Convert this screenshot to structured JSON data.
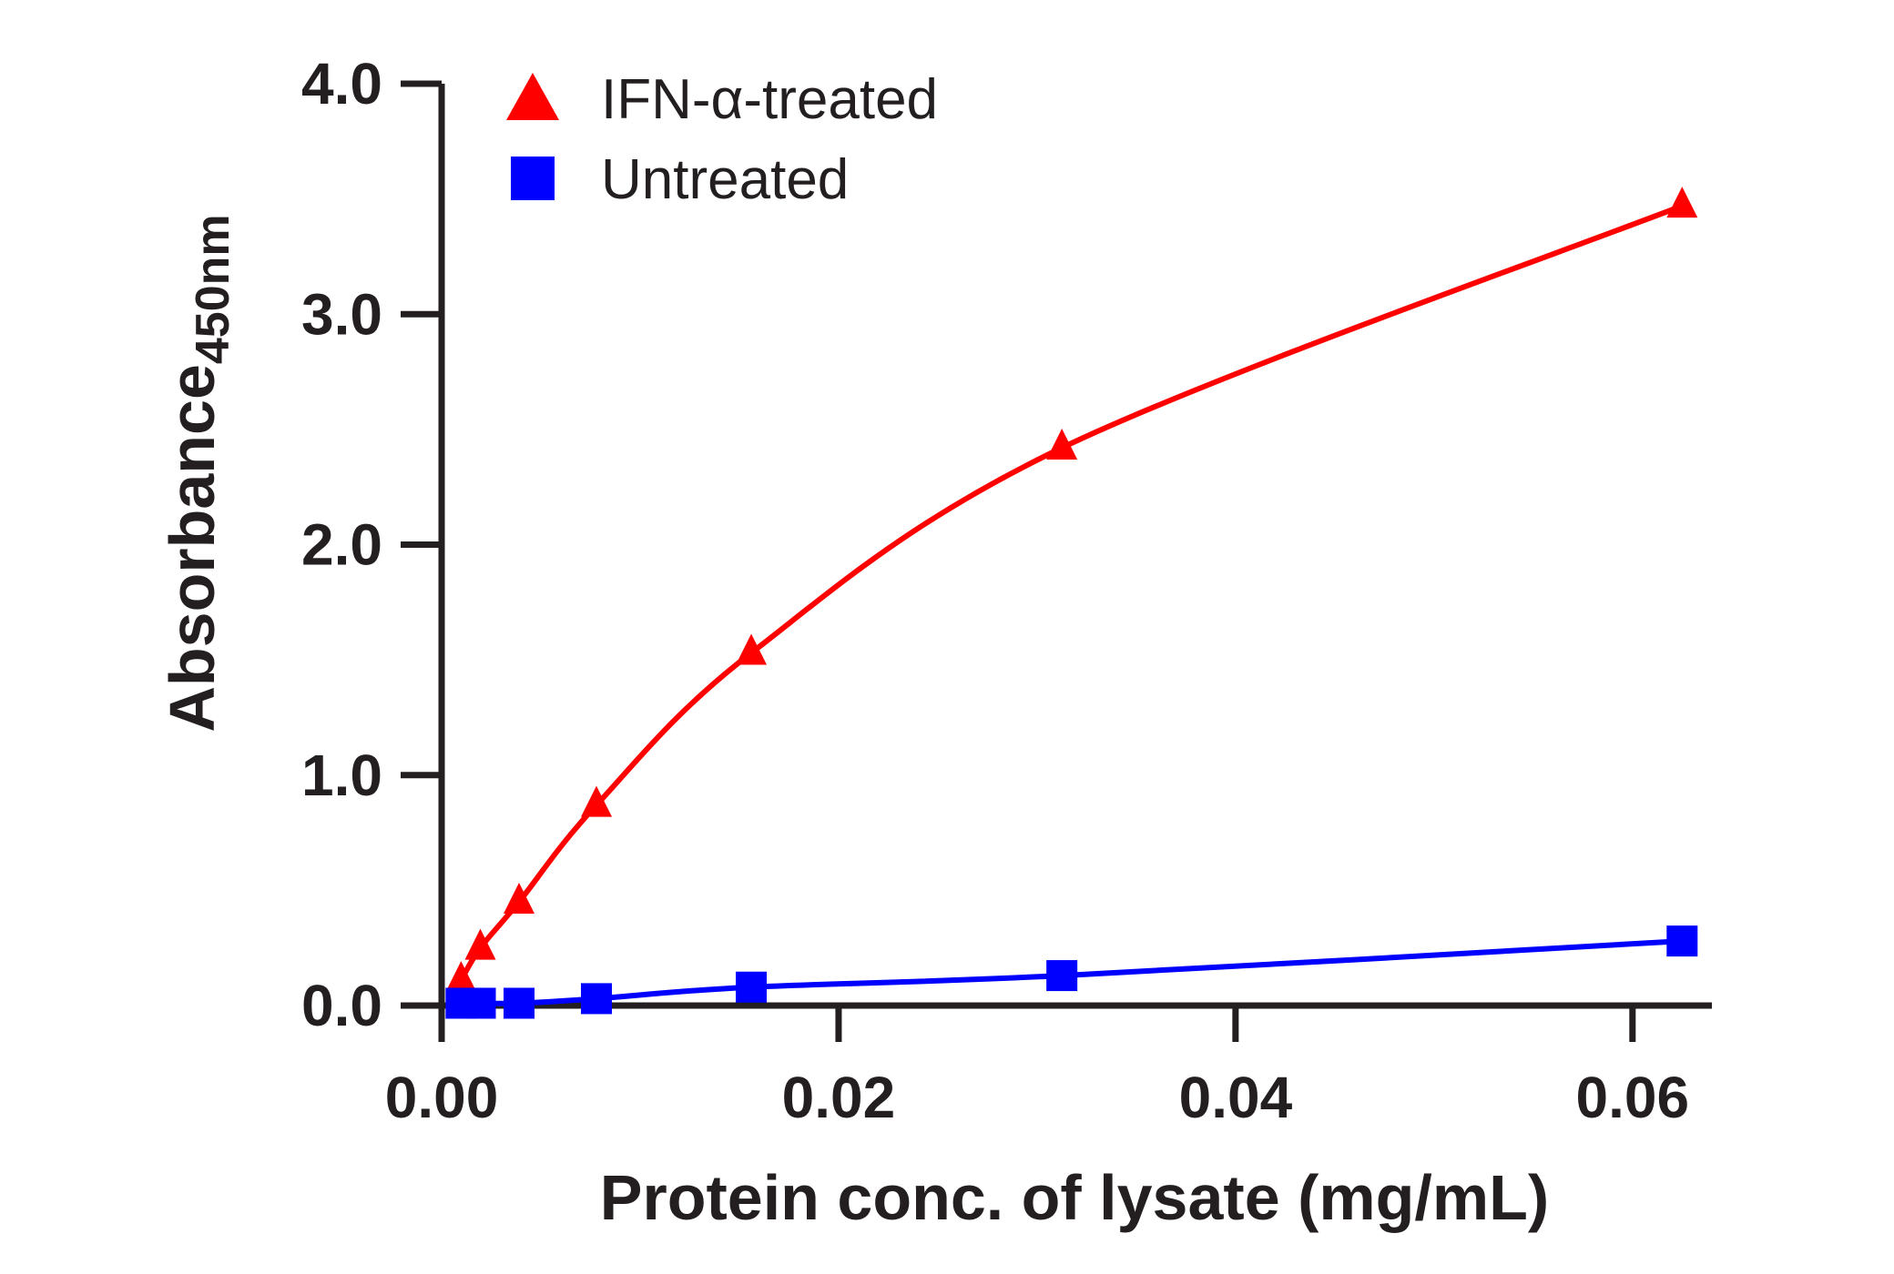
{
  "chart_data": {
    "type": "line",
    "title": "",
    "xlabel": "Protein conc. of lysate (mg/mL)",
    "ylabel": {
      "main": "Absorbance",
      "subscript": "450nm"
    },
    "xlim": [
      0.0,
      0.064
    ],
    "ylim": [
      0.0,
      4.0
    ],
    "x_ticks": [
      0.0,
      0.02,
      0.04,
      0.06
    ],
    "x_tick_labels": [
      "0.00",
      "0.02",
      "0.04",
      "0.06"
    ],
    "y_ticks": [
      0.0,
      1.0,
      2.0,
      3.0,
      4.0
    ],
    "y_tick_labels": [
      "0.0",
      "1.0",
      "2.0",
      "3.0",
      "4.0"
    ],
    "grid": false,
    "legend_position": "top-left",
    "series": [
      {
        "name": "IFN-α-treated",
        "color": "#ff0000",
        "marker": "triangle",
        "x": [
          0.00098,
          0.00195,
          0.0039,
          0.0078,
          0.0156,
          0.03125,
          0.0625
        ],
        "y": [
          0.11,
          0.25,
          0.45,
          0.87,
          1.53,
          2.42,
          3.47
        ]
      },
      {
        "name": "Untreated",
        "color": "#0000ff",
        "marker": "square",
        "x": [
          0.00098,
          0.00195,
          0.0039,
          0.0078,
          0.0156,
          0.03125,
          0.0625
        ],
        "y": [
          0.01,
          0.01,
          0.01,
          0.03,
          0.08,
          0.13,
          0.28
        ]
      }
    ]
  }
}
